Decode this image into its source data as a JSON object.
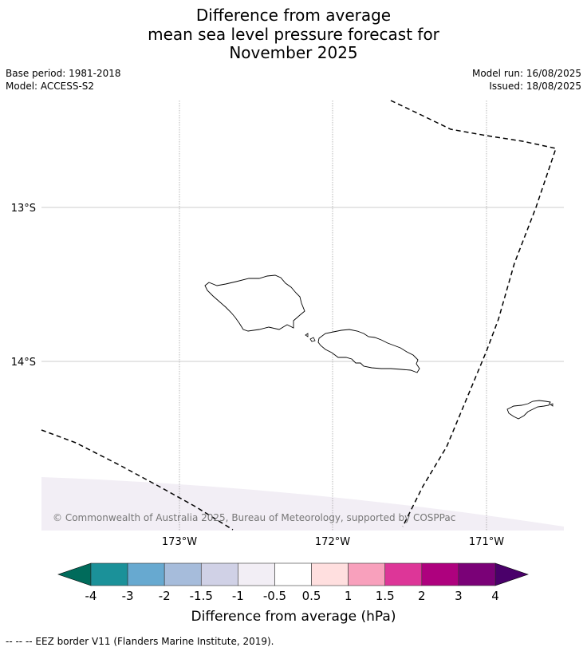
{
  "title": {
    "line1": "Difference from average",
    "line2": "mean sea level pressure forecast for",
    "line3": "November 2025"
  },
  "meta": {
    "base_period": "Base period: 1981-2018",
    "model": "Model: ACCESS-S2",
    "model_run": "Model run: 16/08/2025",
    "issued": "Issued: 18/08/2025"
  },
  "map": {
    "lat_labels": [
      "13°S",
      "14°S"
    ],
    "lon_labels": [
      "173°W",
      "172°W",
      "171°W"
    ],
    "copyright": "© Commonwealth of Australia 2025, Bureau of Meteorology, supported by COSPPac"
  },
  "colorbar": {
    "title": "Difference from average (hPa)",
    "ticks": [
      "-4",
      "-3",
      "-2",
      "-1.5",
      "-1",
      "-0.5",
      "0.5",
      "1",
      "1.5",
      "2",
      "3",
      "4"
    ],
    "colors": {
      "below_min": "#006b5b",
      "bins": [
        "#1b9199",
        "#67a9d0",
        "#a6bcdb",
        "#d0d1e6",
        "#f2eef5",
        "#ffffff",
        "#ffdfdf",
        "#f8a0bc",
        "#dd3698",
        "#ae017e",
        "#7a0177"
      ],
      "above_max": "#4a006a"
    }
  },
  "footnote": "--  --  -- EEZ border V11 (Flanders Marine Institute, 2019)."
}
